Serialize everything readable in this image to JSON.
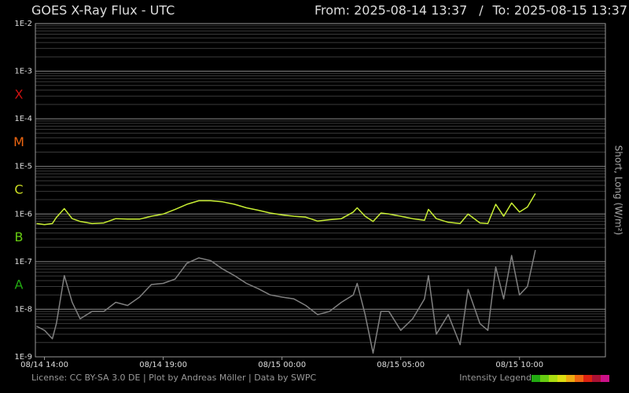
{
  "chart_data": {
    "type": "line",
    "title": "GOES X-Ray Flux - UTC",
    "from_label": "From: 2025-08-14 13:37",
    "separator": "/",
    "to_label": "To: 2025-08-15 13:37",
    "y_label": "Short, Long (W/m²)",
    "log_scale": true,
    "grid": true,
    "xlim": [
      "2025-08-14T13:37",
      "2025-08-15T13:37"
    ],
    "xticks": [
      {
        "value": "2025-08-14T14:00",
        "label": "08/14 14:00"
      },
      {
        "value": "2025-08-14T19:00",
        "label": "08/14 19:00"
      },
      {
        "value": "2025-08-15T00:00",
        "label": "08/15 00:00"
      },
      {
        "value": "2025-08-15T05:00",
        "label": "08/15 05:00"
      },
      {
        "value": "2025-08-15T10:00",
        "label": "08/15 10:00"
      }
    ],
    "ylim": [
      1e-09,
      0.01
    ],
    "yticks": [
      {
        "value": 1e-09,
        "label": "1E-9"
      },
      {
        "value": 1e-08,
        "label": "1E-8"
      },
      {
        "value": 1e-07,
        "label": "1E-7"
      },
      {
        "value": 1e-06,
        "label": "1E-6"
      },
      {
        "value": 1e-05,
        "label": "1E-5"
      },
      {
        "value": 0.0001,
        "label": "1E-4"
      },
      {
        "value": 0.001,
        "label": "1E-3"
      },
      {
        "value": 0.01,
        "label": "1E-2"
      }
    ],
    "flare_classes": [
      {
        "label": "X",
        "value": 0.0001,
        "color": "#cc1111"
      },
      {
        "label": "M",
        "value": 1e-05,
        "color": "#ee6611"
      },
      {
        "label": "C",
        "value": 1e-06,
        "color": "#ccdd22"
      },
      {
        "label": "B",
        "value": 1e-07,
        "color": "#66cc11"
      },
      {
        "label": "A",
        "value": 1e-08,
        "color": "#22aa11"
      }
    ],
    "x": [
      "2025-08-14T13:40",
      "2025-08-14T14:00",
      "2025-08-14T14:20",
      "2025-08-14T14:30",
      "2025-08-14T14:50",
      "2025-08-14T15:10",
      "2025-08-14T15:30",
      "2025-08-14T16:00",
      "2025-08-14T16:30",
      "2025-08-14T17:00",
      "2025-08-14T17:30",
      "2025-08-14T18:00",
      "2025-08-14T18:30",
      "2025-08-14T19:00",
      "2025-08-14T19:30",
      "2025-08-14T20:00",
      "2025-08-14T20:30",
      "2025-08-14T21:00",
      "2025-08-14T21:30",
      "2025-08-14T22:00",
      "2025-08-14T22:30",
      "2025-08-14T23:00",
      "2025-08-14T23:30",
      "2025-08-15T00:00",
      "2025-08-15T00:30",
      "2025-08-15T01:00",
      "2025-08-15T01:30",
      "2025-08-15T02:00",
      "2025-08-15T02:30",
      "2025-08-15T03:00",
      "2025-08-15T03:10",
      "2025-08-15T03:30",
      "2025-08-15T03:50",
      "2025-08-15T04:10",
      "2025-08-15T04:30",
      "2025-08-15T05:00",
      "2025-08-15T05:30",
      "2025-08-15T06:00",
      "2025-08-15T06:10",
      "2025-08-15T06:30",
      "2025-08-15T07:00",
      "2025-08-15T07:30",
      "2025-08-15T07:50",
      "2025-08-15T08:20",
      "2025-08-15T08:40",
      "2025-08-15T09:00",
      "2025-08-15T09:20",
      "2025-08-15T09:40",
      "2025-08-15T10:00",
      "2025-08-15T10:20",
      "2025-08-15T10:40"
    ],
    "series": [
      {
        "color": "#c8ee33",
        "values": [
          6.3e-07,
          6e-07,
          6.3e-07,
          8.5e-07,
          1.3e-06,
          8e-07,
          7e-07,
          6.3e-07,
          6.5e-07,
          8e-07,
          7.8e-07,
          7.8e-07,
          9e-07,
          1e-06,
          1.25e-06,
          1.6e-06,
          1.9e-06,
          1.9e-06,
          1.8e-06,
          1.6e-06,
          1.35e-06,
          1.2e-06,
          1.05e-06,
          9.6e-07,
          9e-07,
          8.6e-07,
          7.1e-07,
          7.6e-07,
          8e-07,
          1.1e-06,
          1.35e-06,
          9e-07,
          7e-07,
          1.05e-06,
          1e-06,
          9e-07,
          8e-07,
          7.4e-07,
          1.25e-06,
          8e-07,
          6.7e-07,
          6.3e-07,
          1e-06,
          6.5e-07,
          6.3e-07,
          1.6e-06,
          9e-07,
          1.7e-06,
          1.1e-06,
          1.4e-06,
          2.7e-06
        ]
      },
      {
        "color": "#808080",
        "values": [
          4.4e-09,
          3.6e-09,
          2.4e-09,
          5e-09,
          5.1e-08,
          1.4e-08,
          6.3e-09,
          9e-09,
          9e-09,
          1.4e-08,
          1.2e-08,
          1.8e-08,
          3.3e-08,
          3.5e-08,
          4.3e-08,
          9.3e-08,
          1.2e-07,
          1.05e-07,
          7e-08,
          5.1e-08,
          3.5e-08,
          2.7e-08,
          2e-08,
          1.8e-08,
          1.65e-08,
          1.2e-08,
          7.7e-09,
          9e-09,
          1.4e-08,
          2e-08,
          3.5e-08,
          7.7e-09,
          1.2e-09,
          9e-09,
          9e-09,
          3.6e-09,
          6.3e-09,
          1.65e-08,
          5.1e-08,
          3e-09,
          7.7e-09,
          1.8e-09,
          2.6e-08,
          5e-09,
          3.6e-09,
          7.7e-08,
          1.65e-08,
          1.35e-07,
          2e-08,
          3e-08,
          1.75e-07
        ]
      }
    ],
    "license": "License: CC BY-SA 3.0 DE | Plot by Andreas Möller | Data by SWPC",
    "intensity_legend": {
      "label": "Intensity Legend",
      "colors": [
        "#22aa11",
        "#66cc11",
        "#aadd11",
        "#dddd11",
        "#eeaa11",
        "#ee6611",
        "#dd2211",
        "#aa1133",
        "#cc1188"
      ]
    }
  }
}
